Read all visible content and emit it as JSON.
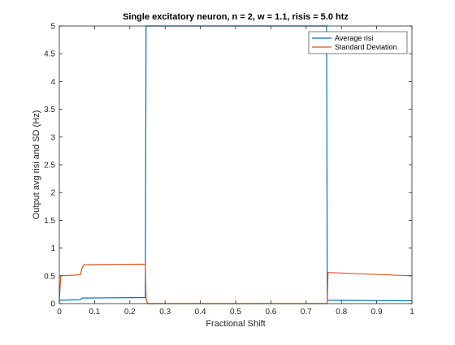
{
  "chart_data": {
    "type": "line",
    "title": "Single excitatory neuron, n = 2, w = 1.1, risis = 5.0 htz",
    "xlabel": "Fractional Shift",
    "ylabel": "Output avg risi and SD (Hz)",
    "xlim": [
      0,
      1
    ],
    "ylim": [
      0,
      5
    ],
    "x_ticks": [
      0,
      0.1,
      0.2,
      0.3,
      0.4,
      0.5,
      0.6,
      0.7,
      0.8,
      0.9,
      1
    ],
    "x_tick_labels": [
      "0",
      "0.1",
      "0.2",
      "0.3",
      "0.4",
      "0.5",
      "0.6",
      "0.7",
      "0.8",
      "0.9",
      "1"
    ],
    "y_ticks": [
      0,
      0.5,
      1,
      1.5,
      2,
      2.5,
      3,
      3.5,
      4,
      4.5,
      5
    ],
    "y_tick_labels": [
      "0",
      "0.5",
      "1",
      "1.5",
      "2",
      "2.5",
      "3",
      "3.5",
      "4",
      "4.5",
      "5"
    ],
    "grid": false,
    "legend_position": "top-right",
    "series": [
      {
        "name": "Average risi",
        "color": "#0072BD",
        "x": [
          0,
          0.002,
          0.06,
          0.065,
          0.244,
          0.246,
          0.248,
          0.758,
          0.76,
          0.762,
          1
        ],
        "y": [
          0.05,
          0.06,
          0.07,
          0.1,
          0.11,
          5,
          5,
          5,
          0.07,
          0.06,
          0.05
        ]
      },
      {
        "name": "Standard Deviation",
        "color": "#D95319",
        "x": [
          0,
          0.004,
          0.06,
          0.065,
          0.07,
          0.244,
          0.246,
          0.25,
          0.758,
          0.76,
          0.762,
          1
        ],
        "y": [
          0.06,
          0.5,
          0.52,
          0.65,
          0.7,
          0.71,
          0.1,
          0,
          0,
          0.02,
          0.56,
          0.5
        ]
      }
    ]
  }
}
